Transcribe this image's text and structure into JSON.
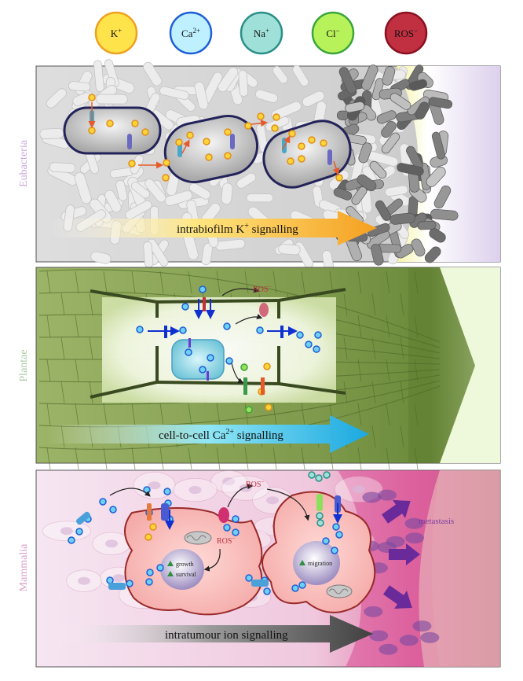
{
  "legend": {
    "ions": [
      {
        "label": "K",
        "sup": "+",
        "fill": "#ffe34a",
        "stroke": "#f0a020"
      },
      {
        "label": "Ca",
        "sup": "2+",
        "fill": "#bff0ff",
        "stroke": "#1e5fd8"
      },
      {
        "label": "Na",
        "sup": "+",
        "fill": "#9fe0d8",
        "stroke": "#2a8f88"
      },
      {
        "label": "Cl",
        "sup": "−",
        "fill": "#b8f25a",
        "stroke": "#3aa53a"
      },
      {
        "label": "ROS",
        "sup": "−",
        "fill": "#c03040",
        "stroke": "#8a1020"
      }
    ]
  },
  "panels": {
    "eubacteria": {
      "kingdom": "Eubacteria",
      "arrow_text": "intrabiofilm K",
      "arrow_sup": "+",
      "arrow_tail": " signalling"
    },
    "plantae": {
      "kingdom": "Plantae",
      "arrow_text": "cell-to-cell Ca",
      "arrow_sup": "2+",
      "arrow_tail": " signalling",
      "ros_label": "ROS",
      "ros_sup": "−"
    },
    "mammalia": {
      "kingdom": "Mammalia",
      "arrow_text": "intratumour ion signalling",
      "ros_label_1": "ROS",
      "ros_label_2": "ROS",
      "ros_sup": "−",
      "growth": "growth",
      "survival": "survival",
      "migration": "migration",
      "metastasis": "metastasis"
    }
  },
  "colors": {
    "potassium": "#ffd43a",
    "calcium": "#4fb8f0",
    "bacteria_outline": "#23235a",
    "plant_green": "#6e8c3c",
    "tumour_pink": "#e08aa8",
    "metastasis_purple": "#7a3aa0"
  }
}
